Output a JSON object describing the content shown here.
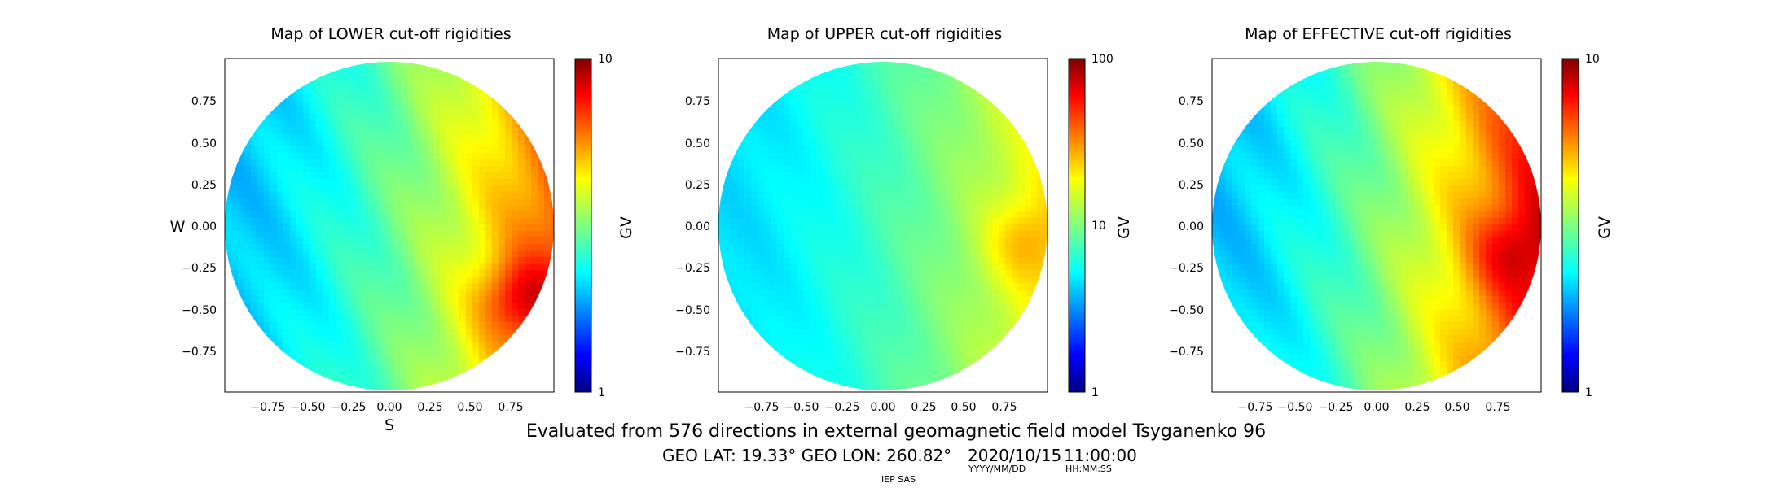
{
  "footer": {
    "line1": "Evaluated from 576 directions in external geomagnetic field model Tsyganenko 96",
    "location": "GEO LAT: 19.33°  GEO LON: 260.82°",
    "date": "2020/10/15",
    "time": "11:00:00",
    "date_format": "YYYY/MM/DD",
    "time_format": "HH:MM:SS",
    "credit": "IEP SAS"
  },
  "direction_labels": {
    "west": "W",
    "south": "S"
  },
  "chart_data": [
    {
      "type": "heatmap",
      "title": "Map of LOWER cut-off rigidities",
      "colorbar": {
        "label": "GV",
        "scale": "log",
        "min": 1,
        "max": 10,
        "ticks": [
          "1",
          "10"
        ],
        "colormap": "jet"
      },
      "xlim": [
        -1,
        1
      ],
      "ylim": [
        -1,
        1
      ],
      "xticks": [
        "−0.75",
        "−0.50",
        "−0.25",
        "0.00",
        "0.25",
        "0.50",
        "0.75"
      ],
      "yticks": [
        "0.75",
        "0.50",
        "0.25",
        "0.00",
        "−0.25",
        "−0.50",
        "−0.75"
      ],
      "field": {
        "west_gv": 2.0,
        "east_gv": 6.5,
        "hotspot": {
          "x": 0.83,
          "y": -0.45,
          "gv": 8.5
        }
      }
    },
    {
      "type": "heatmap",
      "title": "Map of UPPER cut-off rigidities",
      "colorbar": {
        "label": "GV",
        "scale": "log",
        "min": 1,
        "max": 100,
        "ticks": [
          "1",
          "10",
          "100"
        ],
        "colormap": "jet"
      },
      "xlim": [
        -1,
        1
      ],
      "ylim": [
        -1,
        1
      ],
      "xticks": [
        "−0.75",
        "−0.50",
        "−0.25",
        "0.00",
        "0.25",
        "0.50",
        "0.75"
      ],
      "yticks": [
        "0.75",
        "0.50",
        "0.25",
        "0.00",
        "−0.25",
        "−0.50",
        "−0.75"
      ],
      "field": {
        "west_gv": 4.5,
        "east_gv": 20,
        "hotspot": {
          "x": 0.92,
          "y": -0.1,
          "gv": 28
        }
      }
    },
    {
      "type": "heatmap",
      "title": "Map of EFFECTIVE cut-off rigidities",
      "colorbar": {
        "label": "GV",
        "scale": "log",
        "min": 1,
        "max": 10,
        "ticks": [
          "1",
          "10"
        ],
        "colormap": "jet"
      },
      "xlim": [
        -1,
        1
      ],
      "ylim": [
        -1,
        1
      ],
      "xticks": [
        "−0.75",
        "−0.50",
        "−0.25",
        "0.00",
        "0.25",
        "0.50",
        "0.75"
      ],
      "yticks": [
        "0.75",
        "0.50",
        "0.25",
        "0.00",
        "−0.25",
        "−0.50",
        "−0.75"
      ],
      "field": {
        "west_gv": 2.0,
        "east_gv": 8.0,
        "hotspot": {
          "x": 0.9,
          "y": -0.15,
          "gv": 9.0
        }
      }
    }
  ]
}
